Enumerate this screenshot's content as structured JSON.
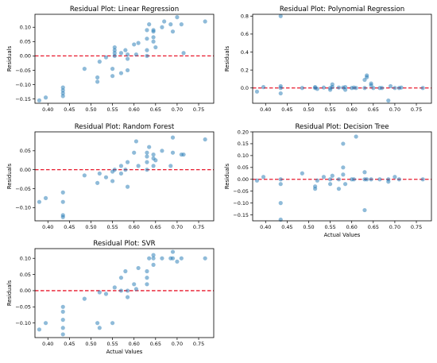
{
  "chart_data": [
    {
      "type": "scatter",
      "title": "Residual Plot: Linear Regression",
      "xlabel": "",
      "ylabel": "Residuals",
      "xlim": [
        0.37,
        0.785
      ],
      "ylim": [
        -0.165,
        0.145
      ],
      "xticks": [
        "0.40",
        "0.45",
        "0.50",
        "0.55",
        "0.60",
        "0.65",
        "0.70",
        "0.75"
      ],
      "yticks": [
        "−0.15",
        "−0.10",
        "−0.05",
        "0.00",
        "0.05",
        "0.10"
      ],
      "xtick_values": [
        0.4,
        0.45,
        0.5,
        0.55,
        0.6,
        0.65,
        0.7,
        0.75
      ],
      "ytick_values": [
        -0.15,
        -0.1,
        -0.05,
        0.0,
        0.05,
        0.1
      ],
      "reference_line": 0,
      "points": [
        [
          0.38,
          -0.155
        ],
        [
          0.395,
          -0.145
        ],
        [
          0.435,
          -0.14
        ],
        [
          0.435,
          -0.13
        ],
        [
          0.435,
          -0.12
        ],
        [
          0.435,
          -0.11
        ],
        [
          0.485,
          -0.045
        ],
        [
          0.515,
          -0.075
        ],
        [
          0.515,
          -0.09
        ],
        [
          0.52,
          -0.02
        ],
        [
          0.535,
          -0.005
        ],
        [
          0.55,
          -0.045
        ],
        [
          0.55,
          -0.07
        ],
        [
          0.555,
          0.0
        ],
        [
          0.555,
          0.01
        ],
        [
          0.555,
          0.02
        ],
        [
          0.555,
          0.03
        ],
        [
          0.57,
          0.01
        ],
        [
          0.57,
          -0.06
        ],
        [
          0.58,
          0.02
        ],
        [
          0.585,
          -0.05
        ],
        [
          0.585,
          -0.01
        ],
        [
          0.585,
          0.005
        ],
        [
          0.6,
          0.04
        ],
        [
          0.605,
          0.005
        ],
        [
          0.61,
          0.045
        ],
        [
          0.63,
          0.0
        ],
        [
          0.63,
          0.02
        ],
        [
          0.63,
          0.06
        ],
        [
          0.63,
          0.09
        ],
        [
          0.635,
          0.11
        ],
        [
          0.645,
          0.05
        ],
        [
          0.645,
          0.065
        ],
        [
          0.645,
          0.09
        ],
        [
          0.645,
          0.085
        ],
        [
          0.65,
          0.03
        ],
        [
          0.665,
          0.1
        ],
        [
          0.67,
          0.12
        ],
        [
          0.685,
          0.11
        ],
        [
          0.69,
          0.085
        ],
        [
          0.7,
          0.135
        ],
        [
          0.71,
          0.11
        ],
        [
          0.715,
          0.01
        ],
        [
          0.765,
          0.12
        ]
      ]
    },
    {
      "type": "scatter",
      "title": "Residual Plot: Polynomial Regression",
      "xlabel": "",
      "ylabel": "Residuals",
      "xlim": [
        0.37,
        0.785
      ],
      "ylim": [
        -0.17,
        0.82
      ],
      "xticks": [
        "0.40",
        "0.45",
        "0.50",
        "0.55",
        "0.60",
        "0.65",
        "0.70",
        "0.75"
      ],
      "yticks": [
        "0.0",
        "0.2",
        "0.4",
        "0.6",
        "0.8"
      ],
      "xtick_values": [
        0.4,
        0.45,
        0.5,
        0.55,
        0.6,
        0.65,
        0.7,
        0.75
      ],
      "ytick_values": [
        0.0,
        0.2,
        0.4,
        0.6,
        0.8
      ],
      "reference_line": 0,
      "points": [
        [
          0.38,
          -0.04
        ],
        [
          0.395,
          0.01
        ],
        [
          0.435,
          0.8
        ],
        [
          0.435,
          -0.06
        ],
        [
          0.435,
          0.0
        ],
        [
          0.435,
          0.02
        ],
        [
          0.485,
          0.0
        ],
        [
          0.515,
          0.0
        ],
        [
          0.515,
          0.01
        ],
        [
          0.52,
          -0.01
        ],
        [
          0.535,
          0.005
        ],
        [
          0.55,
          0.0
        ],
        [
          0.55,
          -0.02
        ],
        [
          0.555,
          0.01
        ],
        [
          0.555,
          0.04
        ],
        [
          0.57,
          0.005
        ],
        [
          0.58,
          0.005
        ],
        [
          0.585,
          -0.02
        ],
        [
          0.585,
          0.01
        ],
        [
          0.6,
          0.0
        ],
        [
          0.605,
          0.005
        ],
        [
          0.61,
          0.0
        ],
        [
          0.63,
          0.0
        ],
        [
          0.63,
          0.09
        ],
        [
          0.635,
          0.14
        ],
        [
          0.635,
          0.12
        ],
        [
          0.645,
          0.03
        ],
        [
          0.645,
          0.05
        ],
        [
          0.65,
          0.0
        ],
        [
          0.665,
          0.0
        ],
        [
          0.67,
          0.0
        ],
        [
          0.685,
          -0.14
        ],
        [
          0.69,
          0.02
        ],
        [
          0.7,
          0.0
        ],
        [
          0.71,
          0.0
        ],
        [
          0.715,
          0.005
        ],
        [
          0.765,
          0.0
        ]
      ]
    },
    {
      "type": "scatter",
      "title": "Residual Plot: Random Forest",
      "xlabel": "",
      "ylabel": "Residuals",
      "xlim": [
        0.37,
        0.785
      ],
      "ylim": [
        -0.135,
        0.1
      ],
      "xticks": [
        "0.40",
        "0.45",
        "0.50",
        "0.55",
        "0.60",
        "0.65",
        "0.70",
        "0.75"
      ],
      "yticks": [
        "−0.10",
        "−0.05",
        "0.00",
        "0.05"
      ],
      "xtick_values": [
        0.4,
        0.45,
        0.5,
        0.55,
        0.6,
        0.65,
        0.7,
        0.75
      ],
      "ytick_values": [
        -0.1,
        -0.05,
        0.0,
        0.05
      ],
      "reference_line": 0,
      "points": [
        [
          0.38,
          -0.085
        ],
        [
          0.395,
          -0.075
        ],
        [
          0.435,
          -0.125
        ],
        [
          0.435,
          -0.12
        ],
        [
          0.435,
          -0.085
        ],
        [
          0.435,
          -0.06
        ],
        [
          0.485,
          -0.015
        ],
        [
          0.515,
          -0.035
        ],
        [
          0.52,
          -0.01
        ],
        [
          0.535,
          -0.02
        ],
        [
          0.55,
          -0.03
        ],
        [
          0.55,
          -0.005
        ],
        [
          0.555,
          0.0
        ],
        [
          0.57,
          0.01
        ],
        [
          0.57,
          -0.01
        ],
        [
          0.58,
          0.0
        ],
        [
          0.585,
          -0.045
        ],
        [
          0.585,
          0.02
        ],
        [
          0.6,
          0.045
        ],
        [
          0.605,
          0.075
        ],
        [
          0.61,
          0.01
        ],
        [
          0.63,
          0.0
        ],
        [
          0.63,
          0.02
        ],
        [
          0.63,
          0.035
        ],
        [
          0.63,
          0.045
        ],
        [
          0.635,
          0.06
        ],
        [
          0.645,
          0.01
        ],
        [
          0.645,
          0.03
        ],
        [
          0.645,
          0.04
        ],
        [
          0.65,
          0.025
        ],
        [
          0.665,
          0.05
        ],
        [
          0.685,
          0.01
        ],
        [
          0.69,
          0.045
        ],
        [
          0.69,
          0.085
        ],
        [
          0.71,
          0.04
        ],
        [
          0.715,
          0.04
        ],
        [
          0.765,
          0.08
        ]
      ]
    },
    {
      "type": "scatter",
      "title": "Residual Plot: Decision Tree",
      "xlabel": "Actual Values",
      "ylabel": "Residuals",
      "xlim": [
        0.37,
        0.785
      ],
      "ylim": [
        -0.175,
        0.2
      ],
      "xticks": [
        "0.40",
        "0.45",
        "0.50",
        "0.55",
        "0.60",
        "0.65",
        "0.70",
        "0.75"
      ],
      "yticks": [
        "−0.15",
        "−0.10",
        "−0.05",
        "0.00",
        "0.05",
        "0.10",
        "0.15",
        "0.20"
      ],
      "xtick_values": [
        0.4,
        0.45,
        0.5,
        0.55,
        0.6,
        0.65,
        0.7,
        0.75
      ],
      "ytick_values": [
        -0.15,
        -0.1,
        -0.05,
        0.0,
        0.05,
        0.1,
        0.15,
        0.2
      ],
      "reference_line": 0,
      "points": [
        [
          0.38,
          -0.005
        ],
        [
          0.395,
          0.01
        ],
        [
          0.435,
          -0.17
        ],
        [
          0.435,
          -0.1
        ],
        [
          0.435,
          -0.02
        ],
        [
          0.435,
          0.0
        ],
        [
          0.485,
          0.025
        ],
        [
          0.515,
          -0.03
        ],
        [
          0.515,
          -0.04
        ],
        [
          0.52,
          -0.005
        ],
        [
          0.535,
          0.01
        ],
        [
          0.55,
          0.0
        ],
        [
          0.55,
          -0.02
        ],
        [
          0.555,
          0.015
        ],
        [
          0.57,
          0.0
        ],
        [
          0.57,
          -0.04
        ],
        [
          0.58,
          0.15
        ],
        [
          0.58,
          0.05
        ],
        [
          0.58,
          0.02
        ],
        [
          0.585,
          -0.02
        ],
        [
          0.6,
          0.0
        ],
        [
          0.605,
          0.0
        ],
        [
          0.61,
          0.18
        ],
        [
          0.63,
          0.0
        ],
        [
          0.63,
          0.03
        ],
        [
          0.63,
          -0.13
        ],
        [
          0.635,
          0.0
        ],
        [
          0.645,
          0.0
        ],
        [
          0.665,
          0.0
        ],
        [
          0.685,
          0.0
        ],
        [
          0.685,
          -0.01
        ],
        [
          0.7,
          0.01
        ],
        [
          0.71,
          0.0
        ],
        [
          0.765,
          0.0
        ]
      ]
    },
    {
      "type": "scatter",
      "title": "Residual Plot: SVR",
      "xlabel": "Actual Values",
      "ylabel": "Residuals",
      "xlim": [
        0.37,
        0.785
      ],
      "ylim": [
        -0.145,
        0.13
      ],
      "xticks": [
        "0.40",
        "0.45",
        "0.50",
        "0.55",
        "0.60",
        "0.65",
        "0.70",
        "0.75"
      ],
      "yticks": [
        "−0.10",
        "−0.05",
        "0.00",
        "0.05",
        "0.10"
      ],
      "xtick_values": [
        0.4,
        0.45,
        0.5,
        0.55,
        0.6,
        0.65,
        0.7,
        0.75
      ],
      "ytick_values": [
        -0.1,
        -0.05,
        0.0,
        0.05,
        0.1
      ],
      "reference_line": 0,
      "points": [
        [
          0.38,
          -0.12
        ],
        [
          0.395,
          -0.1
        ],
        [
          0.435,
          -0.135
        ],
        [
          0.435,
          -0.115
        ],
        [
          0.435,
          -0.09
        ],
        [
          0.435,
          -0.065
        ],
        [
          0.435,
          -0.05
        ],
        [
          0.485,
          -0.025
        ],
        [
          0.515,
          -0.1
        ],
        [
          0.52,
          -0.115
        ],
        [
          0.52,
          -0.005
        ],
        [
          0.535,
          -0.01
        ],
        [
          0.55,
          -0.1
        ],
        [
          0.555,
          0.01
        ],
        [
          0.57,
          0.0
        ],
        [
          0.57,
          0.04
        ],
        [
          0.58,
          0.06
        ],
        [
          0.585,
          -0.02
        ],
        [
          0.585,
          0.0
        ],
        [
          0.6,
          0.02
        ],
        [
          0.605,
          0.005
        ],
        [
          0.61,
          0.07
        ],
        [
          0.63,
          0.02
        ],
        [
          0.63,
          0.04
        ],
        [
          0.63,
          0.06
        ],
        [
          0.635,
          0.1
        ],
        [
          0.645,
          0.08
        ],
        [
          0.645,
          0.1
        ],
        [
          0.645,
          0.11
        ],
        [
          0.665,
          0.1
        ],
        [
          0.685,
          0.1
        ],
        [
          0.69,
          0.12
        ],
        [
          0.69,
          0.1
        ],
        [
          0.7,
          0.09
        ],
        [
          0.71,
          0.1
        ],
        [
          0.765,
          0.1
        ]
      ]
    }
  ],
  "colors": {
    "point": "#1f77b4",
    "reference_line": "#e8192c"
  }
}
